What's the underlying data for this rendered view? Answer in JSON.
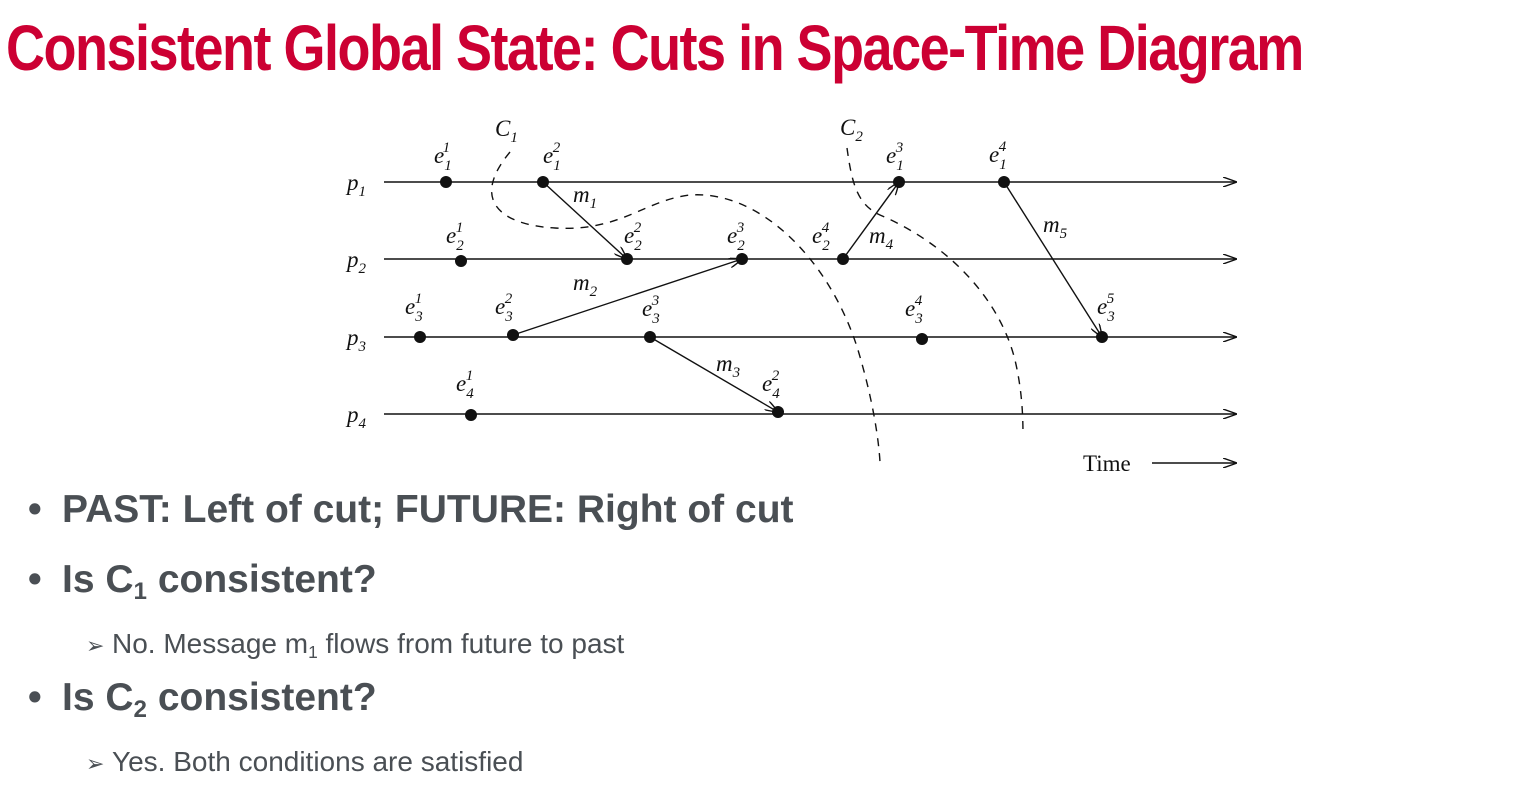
{
  "slide": {
    "title": "Consistent Global State: Cuts in Space-Time Diagram"
  },
  "diagram": {
    "time_label": "Time",
    "processes": [
      {
        "name": "p",
        "sub": "1"
      },
      {
        "name": "p",
        "sub": "2"
      },
      {
        "name": "p",
        "sub": "3"
      },
      {
        "name": "p",
        "sub": "4"
      }
    ],
    "events": [
      {
        "name": "e",
        "sub": "1",
        "sup": "1"
      },
      {
        "name": "e",
        "sub": "1",
        "sup": "2"
      },
      {
        "name": "e",
        "sub": "1",
        "sup": "3"
      },
      {
        "name": "e",
        "sub": "1",
        "sup": "4"
      },
      {
        "name": "e",
        "sub": "2",
        "sup": "1"
      },
      {
        "name": "e",
        "sub": "2",
        "sup": "2"
      },
      {
        "name": "e",
        "sub": "2",
        "sup": "3"
      },
      {
        "name": "e",
        "sub": "2",
        "sup": "4"
      },
      {
        "name": "e",
        "sub": "3",
        "sup": "1"
      },
      {
        "name": "e",
        "sub": "3",
        "sup": "2"
      },
      {
        "name": "e",
        "sub": "3",
        "sup": "3"
      },
      {
        "name": "e",
        "sub": "3",
        "sup": "4"
      },
      {
        "name": "e",
        "sub": "3",
        "sup": "5"
      },
      {
        "name": "e",
        "sub": "4",
        "sup": "1"
      },
      {
        "name": "e",
        "sub": "4",
        "sup": "2"
      }
    ],
    "messages": [
      {
        "name": "m",
        "sub": "1"
      },
      {
        "name": "m",
        "sub": "2"
      },
      {
        "name": "m",
        "sub": "3"
      },
      {
        "name": "m",
        "sub": "4"
      },
      {
        "name": "m",
        "sub": "5"
      }
    ],
    "cuts": [
      {
        "name": "C",
        "sub": "1"
      },
      {
        "name": "C",
        "sub": "2"
      }
    ]
  },
  "bullets": [
    {
      "text": "PAST: Left of cut; FUTURE: Right of cut"
    },
    {
      "pre": "Is C",
      "sub": "1",
      "post": " consistent?"
    },
    {
      "pre": "No. Message m",
      "sub": "1",
      "post": " flows from future to past"
    },
    {
      "pre": "Is C",
      "sub": "2",
      "post": " consistent?"
    },
    {
      "text": "Yes. Both conditions are satisfied"
    }
  ]
}
